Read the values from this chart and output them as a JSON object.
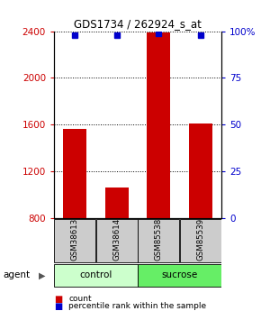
{
  "title": "GDS1734 / 262924_s_at",
  "samples": [
    "GSM38613",
    "GSM38614",
    "GSM85538",
    "GSM85539"
  ],
  "groups": [
    "control",
    "control",
    "sucrose",
    "sucrose"
  ],
  "group_labels": [
    "control",
    "sucrose"
  ],
  "count_values": [
    1560,
    1060,
    2390,
    1610
  ],
  "percentile_values": [
    98,
    98,
    99,
    98
  ],
  "ylim_left": [
    800,
    2400
  ],
  "ylim_right": [
    0,
    100
  ],
  "yticks_left": [
    800,
    1200,
    1600,
    2000,
    2400
  ],
  "yticks_right": [
    0,
    25,
    50,
    75,
    100
  ],
  "ytick_right_labels": [
    "0",
    "25",
    "50",
    "75",
    "100%"
  ],
  "bar_color_red": "#cc0000",
  "bar_color_blue": "#0000cc",
  "group_color_control": "#ccffcc",
  "group_color_sucrose": "#66ee66",
  "sample_box_color": "#cccccc",
  "agent_label": "agent",
  "legend_count": "count",
  "legend_percentile": "percentile rank within the sample",
  "bar_width": 0.55
}
